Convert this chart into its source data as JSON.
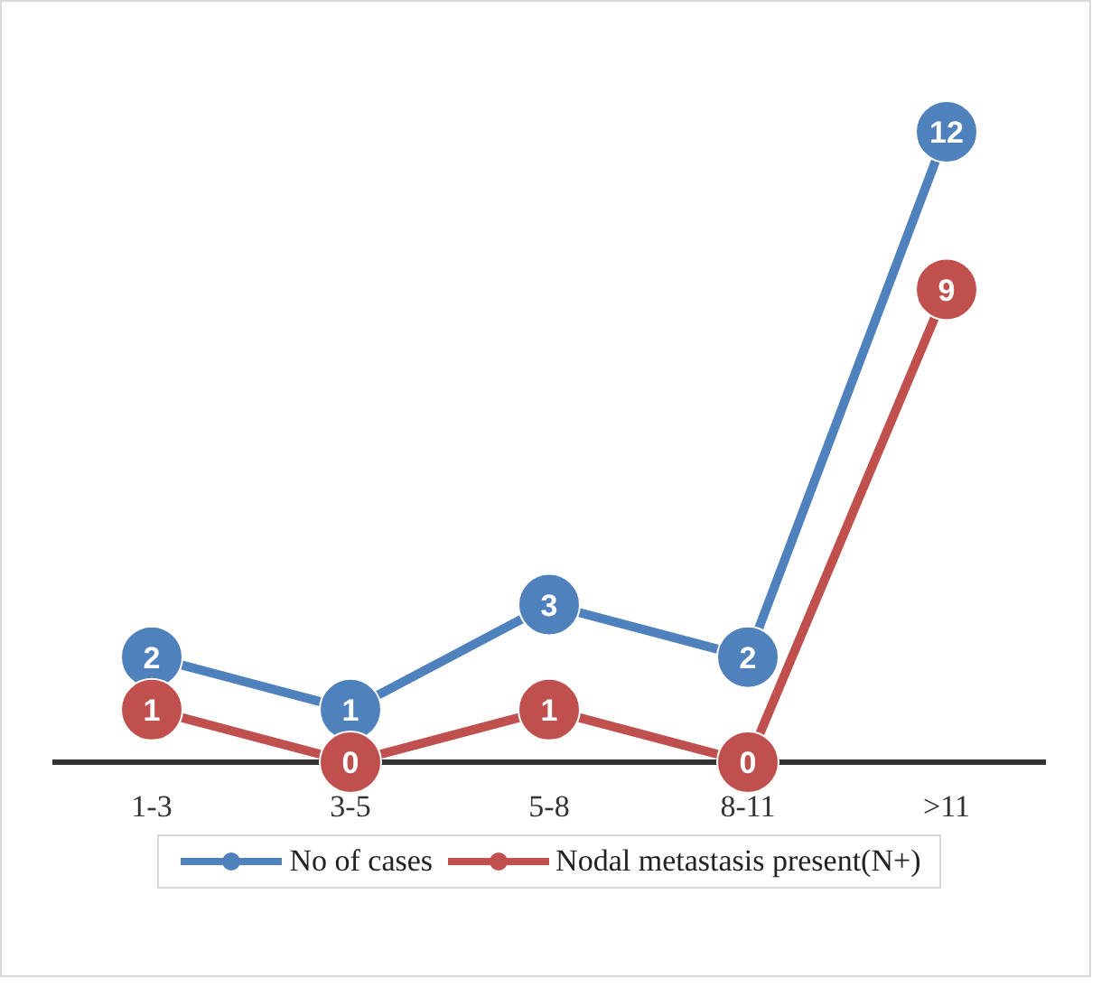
{
  "chart_data": {
    "type": "line",
    "categories": [
      "1-3",
      "3-5",
      "5-8",
      "8-11",
      ">11"
    ],
    "series": [
      {
        "name": "No of cases",
        "color": "#4f81bd",
        "values": [
          2,
          1,
          3,
          2,
          12
        ]
      },
      {
        "name": "Nodal metastasis present(N+)",
        "color": "#c0504d",
        "values": [
          1,
          0,
          1,
          0,
          9
        ]
      }
    ],
    "legend": "bottom",
    "marker": "circle",
    "line_style": "solid",
    "data_labels": true
  }
}
